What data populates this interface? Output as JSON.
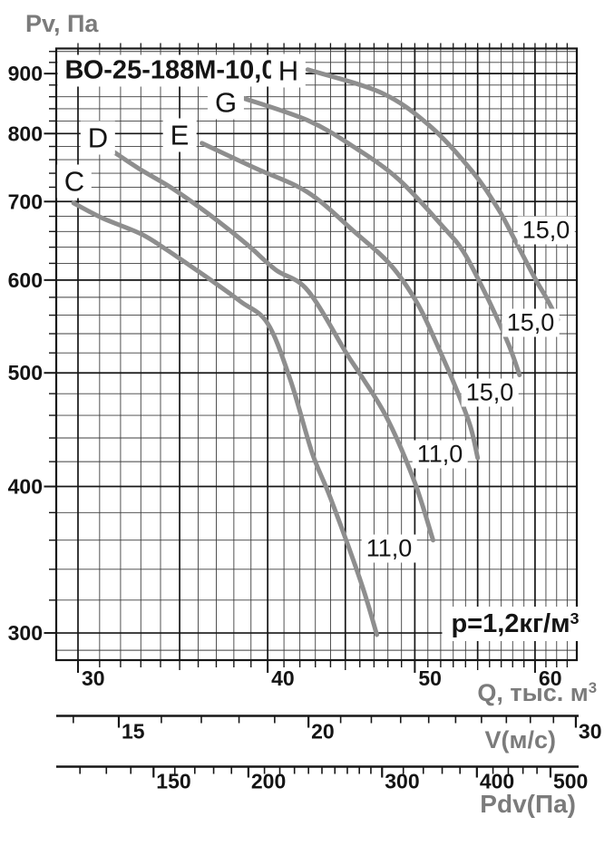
{
  "chart_data": {
    "type": "line",
    "title": "ВО-25-188М-10,0",
    "ylabel": "Pv, Па",
    "xlabel": {
      "text": "Q, тыс. м",
      "sup": "3"
    },
    "annotation": {
      "text": "p=1,2кг/м",
      "sup": "3"
    },
    "x_scale": "log",
    "y_scale": "log",
    "x_range": [
      29.0,
      63.9
    ],
    "y_range": [
      285,
      945
    ],
    "grid": "both",
    "x_ticks_labeled": [
      "30",
      "40",
      "50",
      "60"
    ],
    "x_tick_values": [
      30,
      40,
      50,
      60
    ],
    "x_minor_step": 1,
    "y_ticks_labeled": [
      "900",
      "800",
      "700",
      "600",
      "500",
      "400",
      "300"
    ],
    "y_tick_values": [
      900,
      800,
      700,
      600,
      500,
      400,
      300
    ],
    "y_minor_step": 20,
    "colors": {
      "curve": "#8e8e8e",
      "grid_minor": "#3f3f3f",
      "grid_major": "#161616",
      "axis_text": "#141414",
      "muted_text": "#7b7b7b"
    },
    "series": [
      {
        "name": "C",
        "label_value": "11,0",
        "points": [
          [
            29.8,
            698
          ],
          [
            31.1,
            678
          ],
          [
            33.0,
            657
          ],
          [
            34.3,
            637
          ],
          [
            35.5,
            618
          ],
          [
            36.9,
            597
          ],
          [
            38.4,
            575
          ],
          [
            40.0,
            551
          ],
          [
            41.4,
            493
          ],
          [
            42.8,
            427
          ],
          [
            44.0,
            391
          ],
          [
            46.1,
            331
          ],
          [
            47.2,
            299
          ]
        ]
      },
      {
        "name": "D",
        "label_value": "11,0",
        "points": [
          [
            31.7,
            771
          ],
          [
            33.0,
            745
          ],
          [
            34.4,
            722
          ],
          [
            35.8,
            697
          ],
          [
            37.3,
            670
          ],
          [
            38.9,
            641
          ],
          [
            40.5,
            612
          ],
          [
            42.5,
            588
          ],
          [
            45.1,
            519
          ],
          [
            46.2,
            495
          ],
          [
            48.0,
            456
          ],
          [
            50.0,
            403
          ],
          [
            51.4,
            360
          ]
        ]
      },
      {
        "name": "E",
        "label_value": "15,0",
        "points": [
          [
            36.2,
            785
          ],
          [
            39.2,
            748
          ],
          [
            42.5,
            713
          ],
          [
            45.6,
            660
          ],
          [
            48.2,
            618
          ],
          [
            50.2,
            573
          ],
          [
            51.7,
            529
          ],
          [
            53.3,
            483
          ],
          [
            54.4,
            450
          ],
          [
            55.0,
            423
          ]
        ]
      },
      {
        "name": "G",
        "label_value": "15,0",
        "points": [
          [
            38.5,
            858
          ],
          [
            42.5,
            821
          ],
          [
            45.6,
            779
          ],
          [
            48.8,
            731
          ],
          [
            52.3,
            664
          ],
          [
            53.8,
            635
          ],
          [
            55.3,
            594
          ],
          [
            56.6,
            558
          ],
          [
            57.8,
            524
          ],
          [
            58.6,
            498
          ]
        ]
      },
      {
        "name": "H",
        "label_value": "15,0",
        "points": [
          [
            42.5,
            907
          ],
          [
            47.5,
            867
          ],
          [
            51.1,
            813
          ],
          [
            54.5,
            744
          ],
          [
            56.7,
            691
          ],
          [
            58.2,
            649
          ],
          [
            60.0,
            602
          ],
          [
            61.1,
            578
          ],
          [
            62.1,
            555
          ]
        ]
      }
    ],
    "secondary_axes": [
      {
        "label": "V(м/с)",
        "ticks_labeled": [
          "15",
          "20",
          "30"
        ],
        "tick_values_labeled": [
          15,
          20,
          30
        ],
        "ticks_minor": [
          14,
          16,
          17,
          18,
          19,
          21,
          22,
          23,
          24,
          25,
          26,
          27,
          28,
          29
        ]
      },
      {
        "label": "Pdv(Па)",
        "ticks_labeled": [
          "150",
          "200",
          "300",
          "400",
          "500"
        ],
        "tick_values_labeled": [
          150,
          200,
          300,
          400,
          500
        ],
        "ticks_minor": [
          120,
          130,
          140,
          160,
          170,
          180,
          190,
          210,
          220,
          230,
          240,
          250,
          260,
          270,
          280,
          290,
          320,
          340,
          360,
          380,
          420,
          440,
          460,
          480
        ]
      }
    ]
  }
}
